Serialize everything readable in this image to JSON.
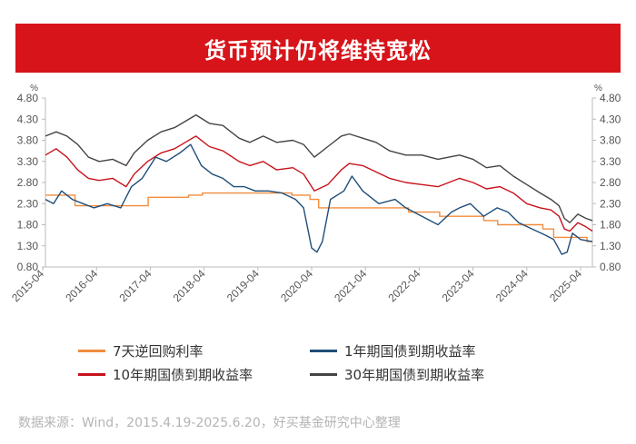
{
  "title": "货币预计仍将维持宽松",
  "source": "数据来源：Wind，2015.4.19-2025.6.20，好买基金研究中心整理",
  "chart_data": {
    "type": "line",
    "unit_left": "%",
    "unit_right": "%",
    "ylim": [
      0.8,
      4.8
    ],
    "yticks": [
      "4.80",
      "4.30",
      "3.80",
      "3.30",
      "2.80",
      "2.30",
      "1.80",
      "1.30",
      "0.80"
    ],
    "xlim": [
      2015.3,
      2025.47
    ],
    "xticks": [
      "2015-04",
      "2016-04",
      "2017-04",
      "2018-04",
      "2019-04",
      "2020-04",
      "2021-04",
      "2022-04",
      "2023-04",
      "2024-04",
      "2025-04"
    ],
    "series": [
      {
        "name": "7天逆回购利率",
        "color": "#f28c3c",
        "step": true,
        "x": [
          2015.3,
          2015.52,
          2015.66,
          2015.85,
          2017.05,
          2017.21,
          2017.96,
          2018.22,
          2019.88,
          2020.22,
          2020.38,
          2022.05,
          2022.63,
          2023.45,
          2023.71,
          2024.55,
          2024.75,
          2025.37,
          2025.47
        ],
        "y": [
          2.5,
          2.5,
          2.5,
          2.25,
          2.25,
          2.45,
          2.5,
          2.55,
          2.5,
          2.4,
          2.2,
          2.1,
          2.0,
          1.9,
          1.8,
          1.7,
          1.5,
          1.4,
          1.4
        ]
      },
      {
        "name": "1年期国债到期收益率",
        "color": "#1f4e79",
        "x": [
          2015.3,
          2015.45,
          2015.6,
          2015.8,
          2016.0,
          2016.2,
          2016.45,
          2016.7,
          2016.9,
          2017.1,
          2017.35,
          2017.55,
          2017.8,
          2018.0,
          2018.2,
          2018.4,
          2018.6,
          2018.8,
          2019.0,
          2019.2,
          2019.45,
          2019.7,
          2019.95,
          2020.1,
          2020.25,
          2020.35,
          2020.45,
          2020.6,
          2020.85,
          2021.0,
          2021.2,
          2021.5,
          2021.8,
          2022.0,
          2022.3,
          2022.6,
          2022.85,
          2023.0,
          2023.2,
          2023.45,
          2023.7,
          2023.9,
          2024.1,
          2024.35,
          2024.6,
          2024.75,
          2024.9,
          2025.0,
          2025.1,
          2025.25,
          2025.47
        ],
        "y": [
          2.4,
          2.3,
          2.6,
          2.4,
          2.3,
          2.2,
          2.3,
          2.2,
          2.7,
          2.9,
          3.4,
          3.3,
          3.5,
          3.7,
          3.2,
          3.0,
          2.9,
          2.7,
          2.7,
          2.6,
          2.6,
          2.55,
          2.4,
          2.2,
          1.25,
          1.15,
          1.4,
          2.4,
          2.6,
          2.95,
          2.6,
          2.3,
          2.4,
          2.2,
          2.0,
          1.8,
          2.1,
          2.2,
          2.3,
          2.0,
          2.2,
          2.1,
          1.85,
          1.7,
          1.55,
          1.45,
          1.1,
          1.15,
          1.6,
          1.45,
          1.4
        ]
      },
      {
        "name": "10年期国债到期收益率",
        "color": "#c8121b",
        "x": [
          2015.3,
          2015.5,
          2015.7,
          2015.9,
          2016.1,
          2016.3,
          2016.55,
          2016.8,
          2016.95,
          2017.2,
          2017.45,
          2017.7,
          2017.9,
          2018.1,
          2018.35,
          2018.6,
          2018.9,
          2019.1,
          2019.35,
          2019.6,
          2019.9,
          2020.1,
          2020.3,
          2020.55,
          2020.8,
          2020.95,
          2021.2,
          2021.45,
          2021.7,
          2022.0,
          2022.3,
          2022.6,
          2022.8,
          2023.0,
          2023.25,
          2023.5,
          2023.75,
          2024.0,
          2024.25,
          2024.5,
          2024.7,
          2024.85,
          2024.95,
          2025.05,
          2025.2,
          2025.35,
          2025.47
        ],
        "y": [
          3.45,
          3.6,
          3.4,
          3.1,
          2.9,
          2.85,
          2.9,
          2.7,
          3.0,
          3.3,
          3.5,
          3.6,
          3.75,
          3.9,
          3.65,
          3.55,
          3.3,
          3.2,
          3.3,
          3.1,
          3.15,
          3.0,
          2.6,
          2.75,
          3.1,
          3.25,
          3.2,
          3.05,
          2.9,
          2.8,
          2.75,
          2.7,
          2.8,
          2.9,
          2.8,
          2.65,
          2.7,
          2.55,
          2.3,
          2.2,
          2.15,
          2.0,
          1.7,
          1.65,
          1.85,
          1.75,
          1.65
        ]
      },
      {
        "name": "30年期国债到期收益率",
        "color": "#444444",
        "x": [
          2015.3,
          2015.5,
          2015.7,
          2015.9,
          2016.1,
          2016.3,
          2016.55,
          2016.8,
          2016.95,
          2017.2,
          2017.45,
          2017.7,
          2017.9,
          2018.1,
          2018.35,
          2018.6,
          2018.9,
          2019.1,
          2019.35,
          2019.6,
          2019.9,
          2020.1,
          2020.3,
          2020.55,
          2020.8,
          2020.95,
          2021.2,
          2021.45,
          2021.7,
          2022.0,
          2022.3,
          2022.6,
          2022.8,
          2023.0,
          2023.25,
          2023.5,
          2023.75,
          2024.0,
          2024.25,
          2024.5,
          2024.7,
          2024.85,
          2024.95,
          2025.05,
          2025.2,
          2025.35,
          2025.47
        ],
        "y": [
          3.9,
          4.0,
          3.9,
          3.7,
          3.4,
          3.3,
          3.35,
          3.2,
          3.5,
          3.8,
          4.0,
          4.1,
          4.25,
          4.4,
          4.2,
          4.15,
          3.85,
          3.75,
          3.9,
          3.75,
          3.8,
          3.7,
          3.4,
          3.65,
          3.9,
          3.95,
          3.85,
          3.75,
          3.55,
          3.45,
          3.45,
          3.35,
          3.4,
          3.45,
          3.35,
          3.15,
          3.2,
          2.95,
          2.75,
          2.55,
          2.4,
          2.25,
          1.95,
          1.85,
          2.05,
          1.95,
          1.9
        ]
      }
    ]
  }
}
